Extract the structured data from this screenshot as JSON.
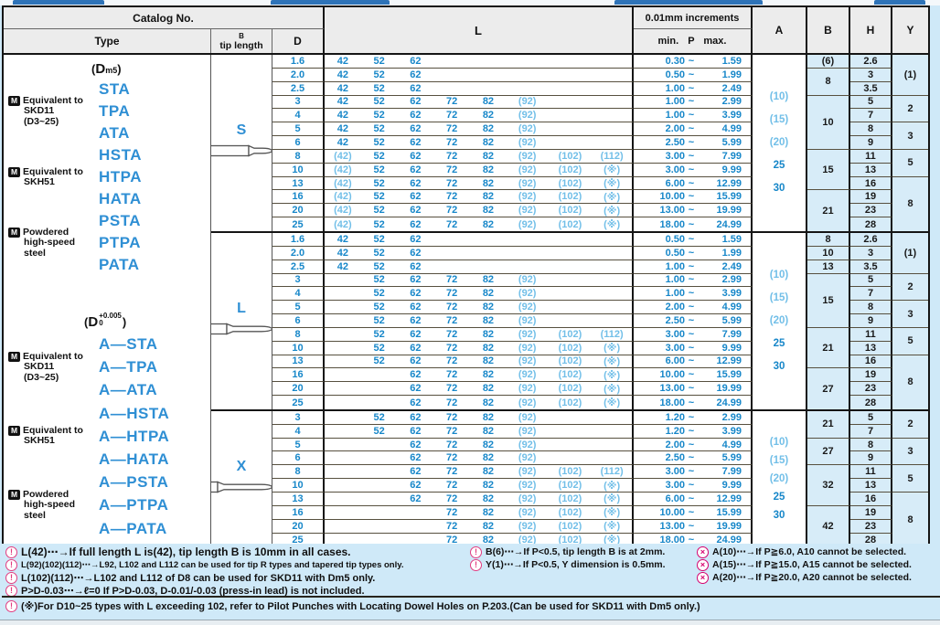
{
  "page": {
    "header": {
      "catalog_no": "Catalog No.",
      "type": "Type",
      "tip_length_line1": "B",
      "tip_length_line2": "tip length",
      "d": "D",
      "l": "L",
      "increments": "0.01mm increments",
      "min_p_max": "min. P max.",
      "a": "A",
      "b": "B",
      "h": "H",
      "y": "Y"
    },
    "type_column": {
      "groups": [
        {
          "dim": {
            "prefix": "(",
            "base": "D",
            "sup": "",
            "sub": "m5",
            "suffix": ")"
          },
          "materials": [
            {
              "label_lines": [
                "Equivalent to",
                "SKD11",
                "(D3~25)"
              ],
              "codes": [
                "STA",
                "TPA",
                "ATA"
              ]
            },
            {
              "label_lines": [
                "Equivalent to",
                "SKH51"
              ],
              "codes": [
                "HSTA",
                "HTPA",
                "HATA"
              ]
            },
            {
              "label_lines": [
                "Powdered",
                "high-speed",
                "steel"
              ],
              "codes": [
                "PSTA",
                "PTPA",
                "PATA"
              ]
            }
          ]
        },
        {
          "dim": {
            "prefix": "(",
            "base": "D",
            "sup": "+0.005",
            "sub": "0",
            "suffix": ")"
          },
          "materials": [
            {
              "label_lines": [
                "Equivalent to",
                "SKD11",
                "(D3~25)"
              ],
              "codes": [
                "A—STA",
                "A—TPA",
                "A—ATA"
              ]
            },
            {
              "label_lines": [
                "Equivalent to",
                "SKH51"
              ],
              "codes": [
                "A—HSTA",
                "A—HTPA",
                "A—HATA"
              ]
            },
            {
              "label_lines": [
                "Powdered",
                "high-speed",
                "steel"
              ],
              "codes": [
                "A—PSTA",
                "A—PTPA",
                "A—PATA"
              ]
            }
          ]
        }
      ]
    },
    "sections": [
      {
        "shape_label": "S",
        "a_values": [
          "(10)",
          "(15)",
          "(20)",
          "25",
          "30"
        ],
        "b_groups": [
          {
            "value": "(6)",
            "span": 1
          },
          {
            "value": "8",
            "span": 2
          },
          {
            "value": "10",
            "span": 4
          },
          {
            "value": "15",
            "span": 3
          },
          {
            "value": "21",
            "span": 3
          }
        ],
        "y_groups": [
          {
            "value": "(1)",
            "span": 3
          },
          {
            "value": "2",
            "span": 2
          },
          {
            "value": "3",
            "span": 2
          },
          {
            "value": "5",
            "span": 2
          },
          {
            "value": "8",
            "span": 4
          }
        ],
        "rows": [
          {
            "d": "1.6",
            "l": [
              "42",
              "52",
              "62",
              "",
              "",
              "",
              "",
              ""
            ],
            "p_min": "0.30",
            "p_max": "1.59",
            "h": "2.6"
          },
          {
            "d": "2.0",
            "l": [
              "42",
              "52",
              "62",
              "",
              "",
              "",
              "",
              ""
            ],
            "p_min": "0.50",
            "p_max": "1.99",
            "h": "3"
          },
          {
            "d": "2.5",
            "l": [
              "42",
              "52",
              "62",
              "",
              "",
              "",
              "",
              ""
            ],
            "p_min": "1.00",
            "p_max": "2.49",
            "h": "3.5"
          },
          {
            "d": "3",
            "l": [
              "42",
              "52",
              "62",
              "72",
              "82",
              "(92)",
              "",
              ""
            ],
            "p_min": "1.00",
            "p_max": "2.99",
            "h": "5"
          },
          {
            "d": "4",
            "l": [
              "42",
              "52",
              "62",
              "72",
              "82",
              "(92)",
              "",
              ""
            ],
            "p_min": "1.00",
            "p_max": "3.99",
            "h": "7"
          },
          {
            "d": "5",
            "l": [
              "42",
              "52",
              "62",
              "72",
              "82",
              "(92)",
              "",
              ""
            ],
            "p_min": "2.00",
            "p_max": "4.99",
            "h": "8"
          },
          {
            "d": "6",
            "l": [
              "42",
              "52",
              "62",
              "72",
              "82",
              "(92)",
              "",
              ""
            ],
            "p_min": "2.50",
            "p_max": "5.99",
            "h": "9"
          },
          {
            "d": "8",
            "l": [
              "(42)",
              "52",
              "62",
              "72",
              "82",
              "(92)",
              "(102)",
              "(112)"
            ],
            "p_min": "3.00",
            "p_max": "7.99",
            "h": "11"
          },
          {
            "d": "10",
            "l": [
              "(42)",
              "52",
              "62",
              "72",
              "82",
              "(92)",
              "(102)",
              "(※)"
            ],
            "p_min": "3.00",
            "p_max": "9.99",
            "h": "13"
          },
          {
            "d": "13",
            "l": [
              "(42)",
              "52",
              "62",
              "72",
              "82",
              "(92)",
              "(102)",
              "(※)"
            ],
            "p_min": "6.00",
            "p_max": "12.99",
            "h": "16"
          },
          {
            "d": "16",
            "l": [
              "(42)",
              "52",
              "62",
              "72",
              "82",
              "(92)",
              "(102)",
              "(※)"
            ],
            "p_min": "10.00",
            "p_max": "15.99",
            "h": "19"
          },
          {
            "d": "20",
            "l": [
              "(42)",
              "52",
              "62",
              "72",
              "82",
              "(92)",
              "(102)",
              "(※)"
            ],
            "p_min": "13.00",
            "p_max": "19.99",
            "h": "23"
          },
          {
            "d": "25",
            "l": [
              "(42)",
              "52",
              "62",
              "72",
              "82",
              "(92)",
              "(102)",
              "(※)"
            ],
            "p_min": "18.00",
            "p_max": "24.99",
            "h": "28"
          }
        ]
      },
      {
        "shape_label": "L",
        "a_values": [
          "(10)",
          "(15)",
          "(20)",
          "25",
          "30"
        ],
        "b_groups": [
          {
            "value": "8",
            "span": 1
          },
          {
            "value": "10",
            "span": 1
          },
          {
            "value": "13",
            "span": 1
          },
          {
            "value": "15",
            "span": 4
          },
          {
            "value": "21",
            "span": 3
          },
          {
            "value": "27",
            "span": 3
          }
        ],
        "y_groups": [
          {
            "value": "(1)",
            "span": 3
          },
          {
            "value": "2",
            "span": 2
          },
          {
            "value": "3",
            "span": 2
          },
          {
            "value": "5",
            "span": 2
          },
          {
            "value": "8",
            "span": 4
          }
        ],
        "rows": [
          {
            "d": "1.6",
            "l": [
              "42",
              "52",
              "62",
              "",
              "",
              "",
              "",
              ""
            ],
            "p_min": "0.50",
            "p_max": "1.59",
            "h": "2.6"
          },
          {
            "d": "2.0",
            "l": [
              "42",
              "52",
              "62",
              "",
              "",
              "",
              "",
              ""
            ],
            "p_min": "0.50",
            "p_max": "1.99",
            "h": "3"
          },
          {
            "d": "2.5",
            "l": [
              "42",
              "52",
              "62",
              "",
              "",
              "",
              "",
              ""
            ],
            "p_min": "1.00",
            "p_max": "2.49",
            "h": "3.5"
          },
          {
            "d": "3",
            "l": [
              "",
              "52",
              "62",
              "72",
              "82",
              "(92)",
              "",
              ""
            ],
            "p_min": "1.00",
            "p_max": "2.99",
            "h": "5"
          },
          {
            "d": "4",
            "l": [
              "",
              "52",
              "62",
              "72",
              "82",
              "(92)",
              "",
              ""
            ],
            "p_min": "1.00",
            "p_max": "3.99",
            "h": "7"
          },
          {
            "d": "5",
            "l": [
              "",
              "52",
              "62",
              "72",
              "82",
              "(92)",
              "",
              ""
            ],
            "p_min": "2.00",
            "p_max": "4.99",
            "h": "8"
          },
          {
            "d": "6",
            "l": [
              "",
              "52",
              "62",
              "72",
              "82",
              "(92)",
              "",
              ""
            ],
            "p_min": "2.50",
            "p_max": "5.99",
            "h": "9"
          },
          {
            "d": "8",
            "l": [
              "",
              "52",
              "62",
              "72",
              "82",
              "(92)",
              "(102)",
              "(112)"
            ],
            "p_min": "3.00",
            "p_max": "7.99",
            "h": "11"
          },
          {
            "d": "10",
            "l": [
              "",
              "52",
              "62",
              "72",
              "82",
              "(92)",
              "(102)",
              "(※)"
            ],
            "p_min": "3.00",
            "p_max": "9.99",
            "h": "13"
          },
          {
            "d": "13",
            "l": [
              "",
              "52",
              "62",
              "72",
              "82",
              "(92)",
              "(102)",
              "(※)"
            ],
            "p_min": "6.00",
            "p_max": "12.99",
            "h": "16"
          },
          {
            "d": "16",
            "l": [
              "",
              "",
              "62",
              "72",
              "82",
              "(92)",
              "(102)",
              "(※)"
            ],
            "p_min": "10.00",
            "p_max": "15.99",
            "h": "19"
          },
          {
            "d": "20",
            "l": [
              "",
              "",
              "62",
              "72",
              "82",
              "(92)",
              "(102)",
              "(※)"
            ],
            "p_min": "13.00",
            "p_max": "19.99",
            "h": "23"
          },
          {
            "d": "25",
            "l": [
              "",
              "",
              "62",
              "72",
              "82",
              "(92)",
              "(102)",
              "(※)"
            ],
            "p_min": "18.00",
            "p_max": "24.99",
            "h": "28"
          }
        ]
      },
      {
        "shape_label": "X",
        "a_values": [
          "(10)",
          "(15)",
          "(20)",
          "25",
          "30"
        ],
        "b_groups": [
          {
            "value": "21",
            "span": 2
          },
          {
            "value": "27",
            "span": 2
          },
          {
            "value": "32",
            "span": 3
          },
          {
            "value": "42",
            "span": 3
          }
        ],
        "y_groups": [
          {
            "value": "2",
            "span": 2
          },
          {
            "value": "3",
            "span": 2
          },
          {
            "value": "5",
            "span": 2
          },
          {
            "value": "8",
            "span": 4
          }
        ],
        "rows": [
          {
            "d": "3",
            "l": [
              "",
              "52",
              "62",
              "72",
              "82",
              "(92)",
              "",
              ""
            ],
            "p_min": "1.20",
            "p_max": "2.99",
            "h": "5"
          },
          {
            "d": "4",
            "l": [
              "",
              "52",
              "62",
              "72",
              "82",
              "(92)",
              "",
              ""
            ],
            "p_min": "1.20",
            "p_max": "3.99",
            "h": "7"
          },
          {
            "d": "5",
            "l": [
              "",
              "",
              "62",
              "72",
              "82",
              "(92)",
              "",
              ""
            ],
            "p_min": "2.00",
            "p_max": "4.99",
            "h": "8"
          },
          {
            "d": "6",
            "l": [
              "",
              "",
              "62",
              "72",
              "82",
              "(92)",
              "",
              ""
            ],
            "p_min": "2.50",
            "p_max": "5.99",
            "h": "9"
          },
          {
            "d": "8",
            "l": [
              "",
              "",
              "62",
              "72",
              "82",
              "(92)",
              "(102)",
              "(112)"
            ],
            "p_min": "3.00",
            "p_max": "7.99",
            "h": "11"
          },
          {
            "d": "10",
            "l": [
              "",
              "",
              "62",
              "72",
              "82",
              "(92)",
              "(102)",
              "(※)"
            ],
            "p_min": "3.00",
            "p_max": "9.99",
            "h": "13"
          },
          {
            "d": "13",
            "l": [
              "",
              "",
              "62",
              "72",
              "82",
              "(92)",
              "(102)",
              "(※)"
            ],
            "p_min": "6.00",
            "p_max": "12.99",
            "h": "16"
          },
          {
            "d": "16",
            "l": [
              "",
              "",
              "",
              "72",
              "82",
              "(92)",
              "(102)",
              "(※)"
            ],
            "p_min": "10.00",
            "p_max": "15.99",
            "h": "19"
          },
          {
            "d": "20",
            "l": [
              "",
              "",
              "",
              "72",
              "82",
              "(92)",
              "(102)",
              "(※)"
            ],
            "p_min": "13.00",
            "p_max": "19.99",
            "h": "23"
          },
          {
            "d": "25",
            "l": [
              "",
              "",
              "",
              "72",
              "82",
              "(92)",
              "(102)",
              "(※)"
            ],
            "p_min": "18.00",
            "p_max": "24.99",
            "h": "28"
          }
        ]
      }
    ],
    "footnotes": {
      "left": [
        {
          "icon": "caution",
          "text": "L(42)⋯→If full length L is(42), tip length B is 10mm in all cases."
        },
        {
          "icon": "caution",
          "text": "L(92)(102)(112)⋯→L92, L102 and L112 can be used for tip R types and tapered tip types only."
        },
        {
          "icon": "caution",
          "text": "L(102)(112)⋯→L102 and L112 of D8 can be used for SKD11 with Dm5 only."
        },
        {
          "icon": "caution",
          "text": "P>D-0.03⋯→ℓ=0   If P>D-0.03, D-0.01/-0.03 (press-in lead) is not included."
        }
      ],
      "middle": [
        {
          "icon": "caution",
          "text": "B(6)⋯→If P<0.5, tip length B is at 2mm."
        },
        {
          "icon": "caution",
          "text": "Y(1)⋯→If P<0.5, Y dimension is 0.5mm."
        }
      ],
      "right": [
        {
          "icon": "cannot",
          "text": "A(10)⋯→If P≧6.0, A10 cannot be selected."
        },
        {
          "icon": "cannot",
          "text": "A(15)⋯→If P≧15.0, A15 cannot be selected."
        },
        {
          "icon": "cannot",
          "text": "A(20)⋯→If P≧20.0, A20 cannot be selected."
        }
      ],
      "bottom": {
        "icon": "caution",
        "text": "(※)For D10~25 types with L exceeding 102, refer to Pilot Punches with Locating Dowel Holes on P.203.(Can be used for SKD11 with Dm5 only.)"
      }
    }
  }
}
